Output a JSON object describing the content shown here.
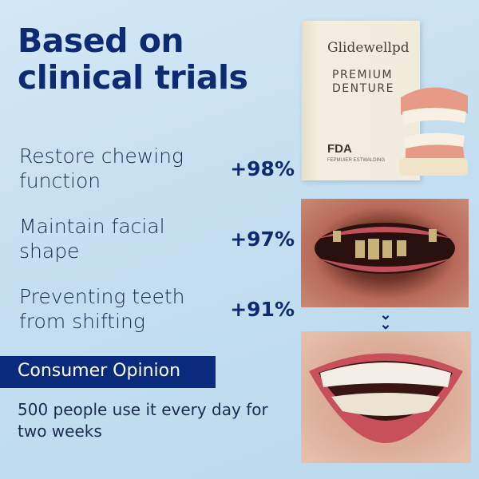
{
  "title": [
    "Based on",
    "clinical trials"
  ],
  "stats": [
    {
      "label": "Restore chewing function",
      "value": "+98%"
    },
    {
      "label": "Maintain facial shape",
      "value": "+97%"
    },
    {
      "label": "Preventing teeth from shifting",
      "value": "+91%"
    }
  ],
  "opinion": {
    "heading": "Consumer Opinion",
    "text": "500 people use it every day for two weeks"
  },
  "product": {
    "brand": "Glidewellpd",
    "line1": "PREMIUM",
    "line2": "DENTURE",
    "badge": "FDA",
    "fine_print": "FEPMUIER ESTWALDING"
  },
  "colors": {
    "navy": "#0a2a7e",
    "background": "#c5e0f0"
  }
}
